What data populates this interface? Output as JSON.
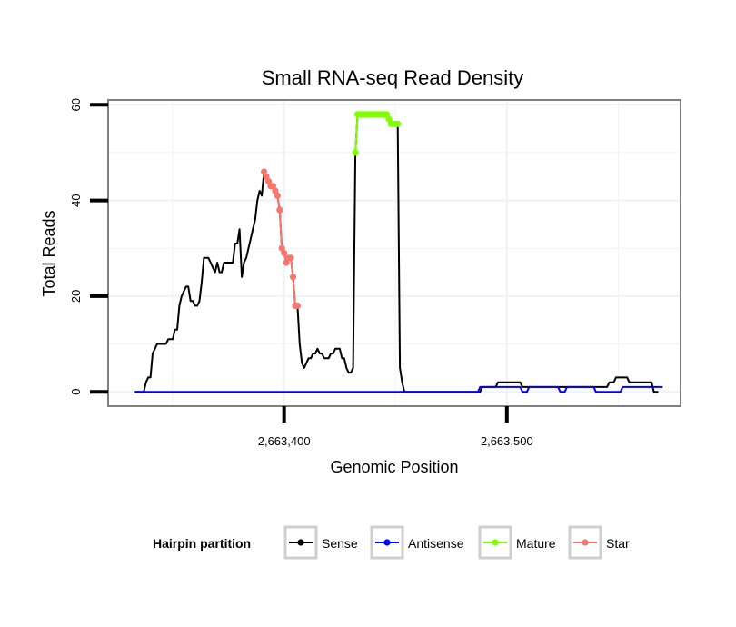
{
  "chart_data": {
    "type": "line",
    "title": "Small RNA-seq Read Density",
    "xlabel": "Genomic Position",
    "ylabel": "Total Reads",
    "xlim": [
      2663321,
      2663578
    ],
    "ylim": [
      -3,
      61
    ],
    "x_ticks": [
      {
        "value": 2663400,
        "label": "2,663,400"
      },
      {
        "value": 2663500,
        "label": "2,663,500"
      }
    ],
    "y_ticks": [
      {
        "value": 0,
        "label": "0"
      },
      {
        "value": 20,
        "label": "20"
      },
      {
        "value": 40,
        "label": "40"
      },
      {
        "value": 60,
        "label": "60"
      }
    ],
    "grid": true,
    "legend": {
      "title": "Hairpin partition",
      "placement": "bottom",
      "entries": [
        {
          "name": "Sense",
          "color": "#000000"
        },
        {
          "name": "Antisense",
          "color": "#0000ff"
        },
        {
          "name": "Mature",
          "color": "#7fff00"
        },
        {
          "name": "Star",
          "color": "#f8766d"
        }
      ]
    },
    "series": [
      {
        "name": "Sense",
        "color": "#000000",
        "markers": false,
        "points": [
          [
            2663333,
            0
          ],
          [
            2663337,
            0
          ],
          [
            2663338,
            2
          ],
          [
            2663339,
            3
          ],
          [
            2663340,
            3
          ],
          [
            2663341,
            8
          ],
          [
            2663342,
            9
          ],
          [
            2663343,
            10
          ],
          [
            2663345,
            10
          ],
          [
            2663347,
            10
          ],
          [
            2663348,
            11
          ],
          [
            2663350,
            11
          ],
          [
            2663351,
            13
          ],
          [
            2663352,
            13
          ],
          [
            2663353,
            18
          ],
          [
            2663354,
            20
          ],
          [
            2663355,
            21
          ],
          [
            2663356,
            22
          ],
          [
            2663357,
            22
          ],
          [
            2663358,
            19
          ],
          [
            2663359,
            19
          ],
          [
            2663360,
            18
          ],
          [
            2663361,
            18
          ],
          [
            2663362,
            19
          ],
          [
            2663363,
            23
          ],
          [
            2663364,
            28
          ],
          [
            2663366,
            28
          ],
          [
            2663367,
            27
          ],
          [
            2663368,
            26
          ],
          [
            2663369,
            25
          ],
          [
            2663370,
            27
          ],
          [
            2663371,
            25
          ],
          [
            2663372,
            25
          ],
          [
            2663373,
            27
          ],
          [
            2663375,
            27
          ],
          [
            2663377,
            27
          ],
          [
            2663378,
            31
          ],
          [
            2663379,
            31
          ],
          [
            2663380,
            34
          ],
          [
            2663381,
            24
          ],
          [
            2663382,
            27
          ],
          [
            2663383,
            28
          ],
          [
            2663385,
            32
          ],
          [
            2663386,
            34
          ],
          [
            2663387,
            36
          ],
          [
            2663388,
            40
          ],
          [
            2663389,
            42
          ],
          [
            2663390,
            41
          ],
          [
            2663391,
            46
          ],
          [
            2663392,
            45
          ],
          [
            2663393,
            44
          ],
          [
            2663394,
            43
          ],
          [
            2663395,
            43
          ],
          [
            2663396,
            42
          ],
          [
            2663397,
            41
          ],
          [
            2663398,
            38
          ],
          [
            2663399,
            30
          ],
          [
            2663400,
            29
          ],
          [
            2663401,
            27
          ],
          [
            2663402,
            28
          ],
          [
            2663403,
            28
          ],
          [
            2663404,
            24
          ],
          [
            2663405,
            18
          ],
          [
            2663406,
            18
          ],
          [
            2663407,
            10
          ],
          [
            2663408,
            6
          ],
          [
            2663409,
            5
          ],
          [
            2663410,
            6
          ],
          [
            2663411,
            7
          ],
          [
            2663412,
            7
          ],
          [
            2663413,
            8
          ],
          [
            2663414,
            8
          ],
          [
            2663415,
            9
          ],
          [
            2663416,
            8
          ],
          [
            2663417,
            8
          ],
          [
            2663418,
            7
          ],
          [
            2663419,
            7
          ],
          [
            2663420,
            7
          ],
          [
            2663421,
            8
          ],
          [
            2663422,
            8
          ],
          [
            2663423,
            9
          ],
          [
            2663424,
            9
          ],
          [
            2663425,
            9
          ],
          [
            2663426,
            7
          ],
          [
            2663427,
            7
          ],
          [
            2663428,
            5
          ],
          [
            2663429,
            4
          ],
          [
            2663430,
            4
          ],
          [
            2663431,
            5
          ],
          [
            2663432,
            50
          ],
          [
            2663433,
            58
          ],
          [
            2663437,
            58
          ],
          [
            2663443,
            58
          ],
          [
            2663446,
            58
          ],
          [
            2663447,
            57
          ],
          [
            2663448,
            56
          ],
          [
            2663449,
            56
          ],
          [
            2663450,
            56
          ],
          [
            2663451,
            56
          ],
          [
            2663452,
            5
          ],
          [
            2663453,
            2
          ],
          [
            2663454,
            0
          ],
          [
            2663460,
            0
          ],
          [
            2663480,
            0
          ],
          [
            2663488,
            0
          ],
          [
            2663489,
            1
          ],
          [
            2663495,
            1
          ],
          [
            2663496,
            2
          ],
          [
            2663500,
            2
          ],
          [
            2663506,
            2
          ],
          [
            2663507,
            1
          ],
          [
            2663510,
            1
          ],
          [
            2663520,
            1
          ],
          [
            2663530,
            1
          ],
          [
            2663545,
            1
          ],
          [
            2663546,
            2
          ],
          [
            2663548,
            2
          ],
          [
            2663549,
            3
          ],
          [
            2663554,
            3
          ],
          [
            2663555,
            2
          ],
          [
            2663565,
            2
          ],
          [
            2663566,
            0
          ],
          [
            2663568,
            0
          ]
        ]
      },
      {
        "name": "Antisense",
        "color": "#0000ff",
        "markers": false,
        "points": [
          [
            2663333,
            0
          ],
          [
            2663487,
            0
          ],
          [
            2663488,
            1
          ],
          [
            2663506,
            1
          ],
          [
            2663507,
            0
          ],
          [
            2663509,
            0
          ],
          [
            2663510,
            1
          ],
          [
            2663523,
            1
          ],
          [
            2663524,
            0
          ],
          [
            2663526,
            0
          ],
          [
            2663527,
            1
          ],
          [
            2663539,
            1
          ],
          [
            2663540,
            0
          ],
          [
            2663551,
            0
          ],
          [
            2663552,
            1
          ],
          [
            2663570,
            1
          ]
        ]
      },
      {
        "name": "Mature",
        "color": "#7fff00",
        "markers": true,
        "points": [
          [
            2663432,
            50
          ],
          [
            2663433,
            58
          ],
          [
            2663434,
            58
          ],
          [
            2663435,
            58
          ],
          [
            2663436,
            58
          ],
          [
            2663437,
            58
          ],
          [
            2663438,
            58
          ],
          [
            2663439,
            58
          ],
          [
            2663440,
            58
          ],
          [
            2663441,
            58
          ],
          [
            2663442,
            58
          ],
          [
            2663443,
            58
          ],
          [
            2663444,
            58
          ],
          [
            2663445,
            58
          ],
          [
            2663446,
            58
          ],
          [
            2663447,
            57
          ],
          [
            2663448,
            56
          ],
          [
            2663449,
            56
          ],
          [
            2663450,
            56
          ],
          [
            2663451,
            56
          ]
        ]
      },
      {
        "name": "Star",
        "color": "#f8766d",
        "markers": true,
        "points": [
          [
            2663391,
            46
          ],
          [
            2663392,
            45
          ],
          [
            2663393,
            44
          ],
          [
            2663394,
            43
          ],
          [
            2663395,
            43
          ],
          [
            2663396,
            42
          ],
          [
            2663397,
            41
          ],
          [
            2663398,
            38
          ],
          [
            2663399,
            30
          ],
          [
            2663400,
            29
          ],
          [
            2663401,
            27
          ],
          [
            2663402,
            28
          ],
          [
            2663403,
            28
          ],
          [
            2663404,
            24
          ],
          [
            2663405,
            18
          ],
          [
            2663406,
            18
          ]
        ]
      }
    ]
  }
}
